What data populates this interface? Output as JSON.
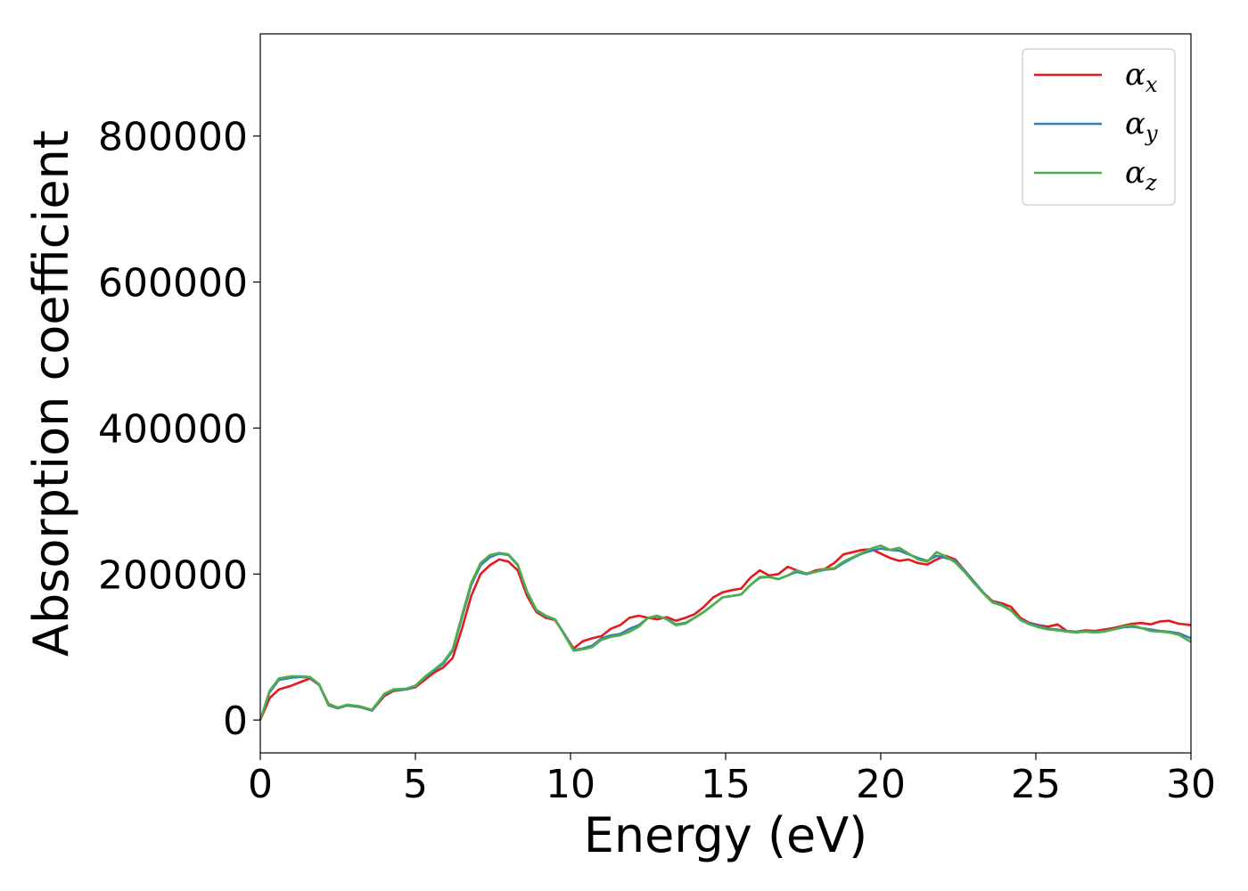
{
  "chart_data": {
    "type": "line",
    "title": "",
    "xlabel": "Energy (eV)",
    "ylabel": "Absorption coefficient",
    "xlim": [
      0,
      30
    ],
    "ylim": [
      -45000,
      940000
    ],
    "xticks": [
      0,
      5,
      10,
      15,
      20,
      25,
      30
    ],
    "yticks": [
      0,
      200000,
      400000,
      600000,
      800000
    ],
    "grid": false,
    "legend_position": "top-right",
    "series": [
      {
        "name": "α_x",
        "symbol": "α",
        "subscript": "x",
        "color": "#e41a1c",
        "x": [
          0,
          0.3,
          0.6,
          1.0,
          1.3,
          1.6,
          1.9,
          2.2,
          2.5,
          2.8,
          3.2,
          3.6,
          4.0,
          4.3,
          4.7,
          5.0,
          5.3,
          5.6,
          5.9,
          6.2,
          6.5,
          6.8,
          7.1,
          7.4,
          7.7,
          8.0,
          8.3,
          8.6,
          8.9,
          9.2,
          9.5,
          9.8,
          10.1,
          10.4,
          10.7,
          11.0,
          11.3,
          11.6,
          11.9,
          12.2,
          12.5,
          12.8,
          13.1,
          13.4,
          13.7,
          14.0,
          14.3,
          14.6,
          14.9,
          15.2,
          15.5,
          15.8,
          16.1,
          16.4,
          16.7,
          17.0,
          17.3,
          17.6,
          17.9,
          18.2,
          18.5,
          18.8,
          19.1,
          19.4,
          19.7,
          20.0,
          20.3,
          20.6,
          20.9,
          21.2,
          21.5,
          21.8,
          22.1,
          22.4,
          22.7,
          23.0,
          23.3,
          23.6,
          23.9,
          24.2,
          24.5,
          24.8,
          25.1,
          25.4,
          25.7,
          26.0,
          26.3,
          26.6,
          26.9,
          27.2,
          27.5,
          27.8,
          28.1,
          28.4,
          28.7,
          29.0,
          29.3,
          29.6,
          30.0
        ],
        "y": [
          0,
          30000,
          42000,
          47000,
          52000,
          57000,
          48000,
          22000,
          17000,
          20000,
          18000,
          13000,
          33000,
          40000,
          42000,
          45000,
          55000,
          65000,
          72000,
          85000,
          125000,
          170000,
          200000,
          212000,
          220000,
          217000,
          205000,
          170000,
          148000,
          140000,
          137000,
          118000,
          98000,
          108000,
          112000,
          115000,
          125000,
          130000,
          140000,
          143000,
          140000,
          138000,
          141000,
          136000,
          140000,
          145000,
          155000,
          168000,
          175000,
          178000,
          180000,
          195000,
          205000,
          198000,
          200000,
          210000,
          205000,
          200000,
          205000,
          207000,
          215000,
          227000,
          230000,
          233000,
          234000,
          228000,
          222000,
          218000,
          220000,
          215000,
          213000,
          220000,
          225000,
          220000,
          205000,
          190000,
          175000,
          163000,
          160000,
          155000,
          140000,
          133000,
          130000,
          128000,
          131000,
          122000,
          121000,
          123000,
          122000,
          124000,
          126000,
          129000,
          132000,
          133000,
          131000,
          135000,
          136000,
          132000,
          130000
        ]
      },
      {
        "name": "α_y",
        "symbol": "α",
        "subscript": "y",
        "color": "#377eb8",
        "x": [
          0,
          0.3,
          0.6,
          1.0,
          1.3,
          1.6,
          1.9,
          2.2,
          2.5,
          2.8,
          3.2,
          3.6,
          4.0,
          4.3,
          4.7,
          5.0,
          5.3,
          5.6,
          5.9,
          6.2,
          6.5,
          6.8,
          7.1,
          7.4,
          7.7,
          8.0,
          8.3,
          8.6,
          8.9,
          9.2,
          9.5,
          9.8,
          10.1,
          10.4,
          10.7,
          11.0,
          11.3,
          11.6,
          11.9,
          12.2,
          12.5,
          12.8,
          13.1,
          13.4,
          13.7,
          14.0,
          14.3,
          14.6,
          14.9,
          15.2,
          15.5,
          15.8,
          16.1,
          16.4,
          16.7,
          17.0,
          17.3,
          17.6,
          17.9,
          18.2,
          18.5,
          18.8,
          19.1,
          19.4,
          19.7,
          20.0,
          20.3,
          20.6,
          20.9,
          21.2,
          21.5,
          21.8,
          22.1,
          22.4,
          22.7,
          23.0,
          23.3,
          23.6,
          23.9,
          24.2,
          24.5,
          24.8,
          25.1,
          25.4,
          25.7,
          26.0,
          26.3,
          26.6,
          26.9,
          27.2,
          27.5,
          27.8,
          28.1,
          28.4,
          28.7,
          29.0,
          29.3,
          29.6,
          30.0
        ],
        "y": [
          0,
          38000,
          55000,
          58000,
          59000,
          58000,
          48000,
          20000,
          16000,
          20000,
          18000,
          13000,
          35000,
          41000,
          42000,
          46000,
          58000,
          68000,
          77000,
          95000,
          140000,
          185000,
          212000,
          223000,
          228000,
          226000,
          212000,
          175000,
          150000,
          142000,
          138000,
          118000,
          96000,
          98000,
          102000,
          112000,
          116000,
          118000,
          125000,
          130000,
          140000,
          142000,
          139000,
          131000,
          133000,
          140000,
          148000,
          158000,
          168000,
          170000,
          172000,
          185000,
          195000,
          196000,
          193000,
          198000,
          203000,
          200000,
          203000,
          206000,
          207000,
          215000,
          222000,
          228000,
          232000,
          235000,
          233000,
          232000,
          227000,
          222000,
          218000,
          225000,
          222000,
          218000,
          205000,
          190000,
          175000,
          162000,
          158000,
          150000,
          138000,
          132000,
          129000,
          125000,
          124000,
          122000,
          121000,
          122000,
          121000,
          122000,
          124000,
          127000,
          128000,
          126000,
          124000,
          122000,
          121000,
          119000,
          112000
        ]
      },
      {
        "name": "α_z",
        "symbol": "α",
        "subscript": "z",
        "color": "#4daf4a",
        "x": [
          0,
          0.3,
          0.6,
          1.0,
          1.3,
          1.6,
          1.9,
          2.2,
          2.5,
          2.8,
          3.2,
          3.6,
          4.0,
          4.3,
          4.7,
          5.0,
          5.3,
          5.6,
          5.9,
          6.2,
          6.5,
          6.8,
          7.1,
          7.4,
          7.7,
          8.0,
          8.3,
          8.6,
          8.9,
          9.2,
          9.5,
          9.8,
          10.1,
          10.4,
          10.7,
          11.0,
          11.3,
          11.6,
          11.9,
          12.2,
          12.5,
          12.8,
          13.1,
          13.4,
          13.7,
          14.0,
          14.3,
          14.6,
          14.9,
          15.2,
          15.5,
          15.8,
          16.1,
          16.4,
          16.7,
          17.0,
          17.3,
          17.6,
          17.9,
          18.2,
          18.5,
          18.8,
          19.1,
          19.4,
          19.7,
          20.0,
          20.3,
          20.6,
          20.9,
          21.2,
          21.5,
          21.8,
          22.1,
          22.4,
          22.7,
          23.0,
          23.3,
          23.6,
          23.9,
          24.2,
          24.5,
          24.8,
          25.1,
          25.4,
          25.7,
          26.0,
          26.3,
          26.6,
          26.9,
          27.2,
          27.5,
          27.8,
          28.1,
          28.4,
          28.7,
          29.0,
          29.3,
          29.6,
          30.0
        ],
        "y": [
          0,
          40000,
          57000,
          60000,
          60000,
          59000,
          49000,
          21000,
          17000,
          21000,
          19000,
          14000,
          36000,
          42000,
          43000,
          47000,
          59000,
          69000,
          79000,
          97000,
          143000,
          188000,
          215000,
          226000,
          229000,
          227000,
          213000,
          176000,
          151000,
          143000,
          138000,
          117000,
          95000,
          97000,
          100000,
          110000,
          114000,
          116000,
          121000,
          128000,
          140000,
          143000,
          138000,
          130000,
          132000,
          140000,
          148000,
          158000,
          168000,
          170000,
          172000,
          185000,
          196000,
          196000,
          193000,
          198000,
          205000,
          201000,
          203000,
          207000,
          208000,
          217000,
          223000,
          229000,
          235000,
          239000,
          233000,
          236000,
          228000,
          220000,
          217000,
          230000,
          224000,
          216000,
          203000,
          188000,
          174000,
          161000,
          157000,
          150000,
          137000,
          131000,
          127000,
          124000,
          123000,
          121000,
          120000,
          121000,
          120000,
          121000,
          124000,
          128000,
          130000,
          126000,
          122000,
          121000,
          120000,
          117000,
          107000
        ]
      }
    ]
  }
}
